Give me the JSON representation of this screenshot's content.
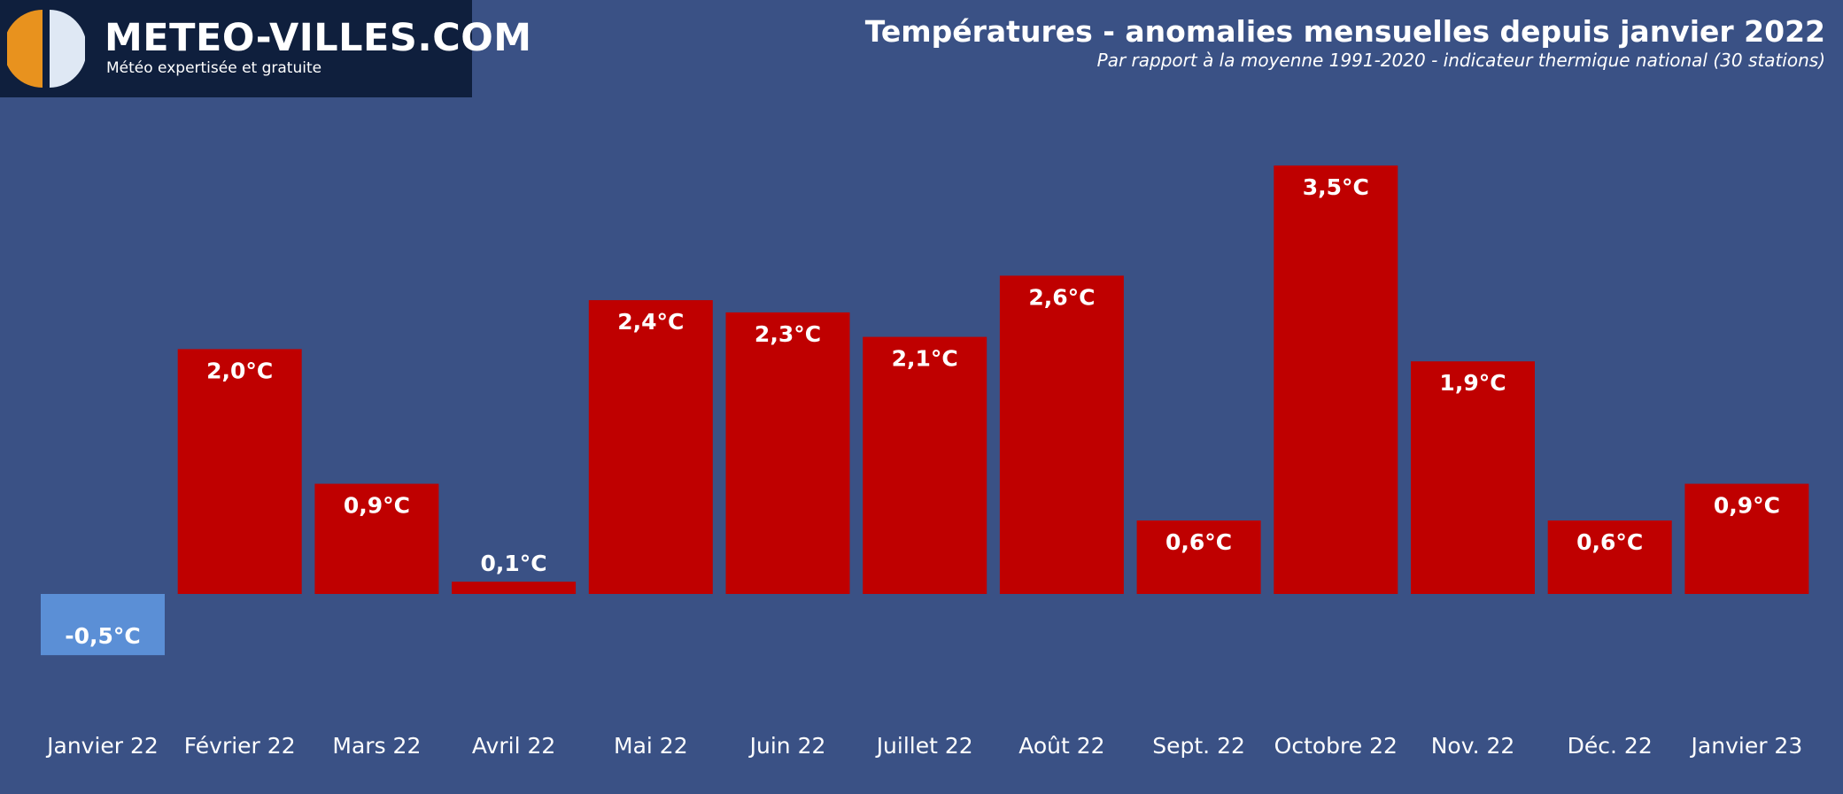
{
  "brand": {
    "name": "METEO-VILLES.COM",
    "tagline": "Météo expertisée et gratuite"
  },
  "colors": {
    "background": "#3a5185",
    "positive_bar": "#bf0000",
    "negative_bar": "#5b8fd6",
    "logo_bg": "#0f1f3d",
    "logo_orange": "#e8921e",
    "logo_light": "#dfe8f4"
  },
  "chart_data": {
    "type": "bar",
    "title": "Températures - anomalies mensuelles depuis janvier 2022",
    "subtitle": "Par rapport à la moyenne 1991-2020 - indicateur thermique national (30 stations)",
    "xlabel": "",
    "ylabel": "",
    "unit": "°C",
    "categories": [
      "Janvier 22",
      "Février 22",
      "Mars 22",
      "Avril 22",
      "Mai 22",
      "Juin 22",
      "Juillet 22",
      "Août 22",
      "Sept. 22",
      "Octobre 22",
      "Nov. 22",
      "Déc. 22",
      "Janvier 23"
    ],
    "values": [
      -0.5,
      2.0,
      0.9,
      0.1,
      2.4,
      2.3,
      2.1,
      2.6,
      0.6,
      3.5,
      1.9,
      0.6,
      0.9
    ],
    "data_labels": [
      "-0,5°C",
      "2,0°C",
      "0,9°C",
      "0,1°C",
      "2,4°C",
      "2,3°C",
      "2,1°C",
      "2,6°C",
      "0,6°C",
      "3,5°C",
      "1,9°C",
      "0,6°C",
      "0,9°C"
    ],
    "ylim": [
      -0.5,
      3.5
    ],
    "grid": false,
    "legend": false
  }
}
